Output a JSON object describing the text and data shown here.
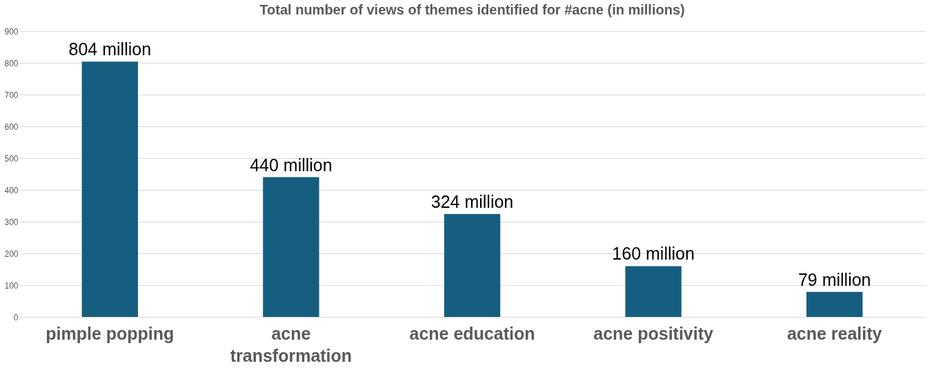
{
  "chart_data": {
    "type": "bar",
    "title": "Total number of views of themes identified for #acne (in millions)",
    "categories": [
      "pimple popping",
      "acne transformation",
      "acne education",
      "acne positivity",
      "acne reality"
    ],
    "values": [
      804,
      440,
      324,
      160,
      79
    ],
    "value_labels": [
      "804 million",
      "440 million",
      "324 million",
      "160 million",
      "79 million"
    ],
    "color": "#165e80",
    "ylim": [
      0,
      900
    ],
    "yticks": [
      0,
      100,
      200,
      300,
      400,
      500,
      600,
      700,
      800,
      900
    ],
    "grid": "y"
  }
}
